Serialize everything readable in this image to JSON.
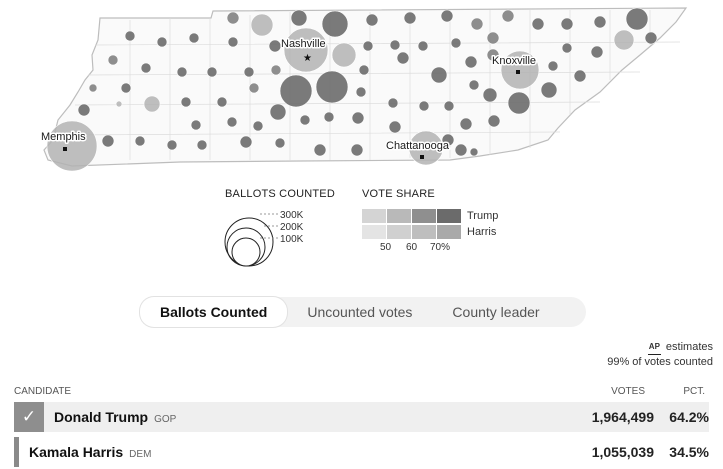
{
  "map": {
    "cities": [
      {
        "name": "Nashville",
        "label": "Nashville"
      },
      {
        "name": "Knoxville",
        "label": "Knoxville"
      },
      {
        "name": "Memphis",
        "label": "Memphis"
      },
      {
        "name": "Chattanooga",
        "label": "Chattanooga"
      }
    ],
    "colors": {
      "trump_dark": "#6b6b6b",
      "trump_mid": "#828282",
      "harris": "#b3b3b3",
      "border": "#bdbdbd"
    }
  },
  "legend": {
    "ballots_title": "BALLOTS COUNTED",
    "ballots_ticks": [
      "300K",
      "200K",
      "100K"
    ],
    "share_title": "VOTE SHARE",
    "share_rows": [
      "Trump",
      "Harris"
    ],
    "share_ticks": [
      "50",
      "60",
      "70%"
    ],
    "trump_colors": [
      "#d4d4d4",
      "#b9b9b9",
      "#8f8f8f",
      "#6b6b6b"
    ],
    "harris_colors": [
      "#e4e4e4",
      "#d0d0d0",
      "#bebebe",
      "#a9a9a9"
    ]
  },
  "tabs": [
    {
      "label": "Ballots Counted",
      "active": true
    },
    {
      "label": "Uncounted votes",
      "active": false
    },
    {
      "label": "County leader",
      "active": false
    }
  ],
  "source": {
    "badge": "AP",
    "estimates": "estimates",
    "counted": "99% of votes counted"
  },
  "table": {
    "headers": {
      "candidate": "CANDIDATE",
      "votes": "VOTES",
      "pct": "PCT."
    },
    "rows": [
      {
        "name": "Donald Trump",
        "party": "GOP",
        "votes": "1,964,499",
        "pct": "64.2%",
        "winner": true
      },
      {
        "name": "Kamala Harris",
        "party": "DEM",
        "votes": "1,055,039",
        "pct": "34.5%",
        "winner": false
      }
    ]
  }
}
